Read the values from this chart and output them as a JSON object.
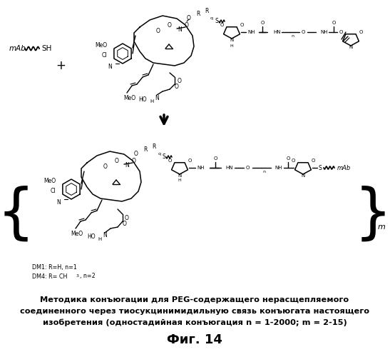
{
  "title": "Фиг. 14",
  "caption_line1": "Методика конъюгации для PEG-содержащего нерасщепляемого",
  "caption_line2": "соединенного через тиосукцинимидильную связь конъюгата настоящего",
  "caption_line3": "изобретения (одностадийная конъюгация n = 1-2000; m = 2-15)",
  "background_color": "#ffffff",
  "text_color": "#000000"
}
